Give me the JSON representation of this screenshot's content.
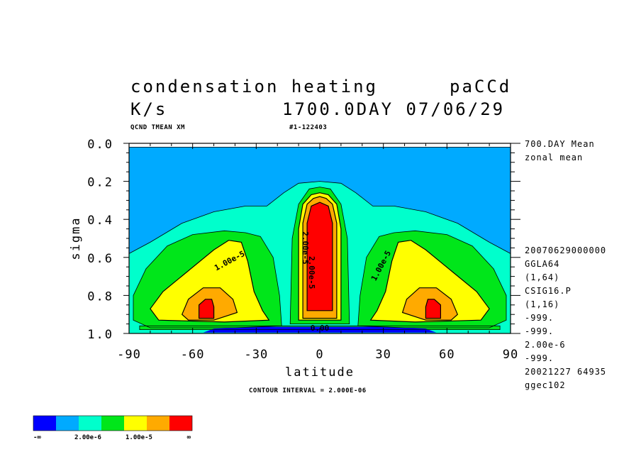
{
  "header": {
    "title": "condensation heating",
    "run_id": "paCCd",
    "units": "K/s",
    "time_stamp": "1700.0DAY 07/06/29",
    "variable_tag": "QCND TMEAN XM",
    "record_tag": "#1-122403",
    "contour_interval": "CONTOUR INTERVAL = 2.000E-06"
  },
  "side_info": {
    "top": [
      "700.DAY Mean",
      "zonal mean"
    ],
    "bottom": [
      "20070629000000",
      "GGLA64",
      "(1,64)",
      "CSIG16.P",
      "(1,16)",
      "-999.",
      "-999.",
      "2.00e-6",
      "-999.",
      "20021227  64935",
      "ggec102"
    ]
  },
  "chart_data": {
    "type": "contour",
    "title": "condensation heating",
    "xlabel": "latitude",
    "ylabel": "sigma",
    "xlim": [
      -90,
      90
    ],
    "ylim": [
      1.0,
      0.0
    ],
    "x_ticks": [
      -90,
      -60,
      -30,
      0,
      30,
      60,
      90
    ],
    "x_tick_labels": [
      "-90",
      "-60",
      "-30",
      "0",
      "30",
      "60",
      "90"
    ],
    "y_ticks": [
      0.0,
      0.2,
      0.4,
      0.6,
      0.8,
      1.0
    ],
    "y_tick_labels": [
      "0.0",
      "0.2",
      "0.4",
      "0.6",
      "0.8",
      "1.0"
    ],
    "contour_labels": [
      {
        "text": "1.00e-5",
        "lat": -42,
        "sigma": 0.63,
        "angle": -28
      },
      {
        "text": "1.00e-5",
        "lat": 30,
        "sigma": 0.65,
        "angle": -62
      },
      {
        "text": "2.00e-5",
        "lat": -8,
        "sigma": 0.55,
        "angle": 90
      },
      {
        "text": "2.00e-5",
        "lat": -5,
        "sigma": 0.68,
        "angle": 90
      },
      {
        "text": "0.00",
        "lat": 0,
        "sigma": 0.985,
        "angle": 0
      }
    ],
    "regions": [
      {
        "name": "subtropics",
        "level": 1,
        "color": "#00aaff",
        "polygon": [
          [
            -90,
            0.02
          ],
          [
            90,
            0.02
          ],
          [
            90,
            1.0
          ],
          [
            -90,
            1.0
          ]
        ]
      },
      {
        "name": "band-2",
        "level": 2,
        "color": "#00ffcc",
        "polygon": [
          [
            -90,
            0.58
          ],
          [
            -80,
            0.52
          ],
          [
            -65,
            0.42
          ],
          [
            -50,
            0.36
          ],
          [
            -35,
            0.33
          ],
          [
            -25,
            0.33
          ],
          [
            -17,
            0.26
          ],
          [
            -10,
            0.21
          ],
          [
            0,
            0.2
          ],
          [
            10,
            0.21
          ],
          [
            17,
            0.26
          ],
          [
            25,
            0.33
          ],
          [
            35,
            0.33
          ],
          [
            50,
            0.36
          ],
          [
            65,
            0.42
          ],
          [
            80,
            0.52
          ],
          [
            90,
            0.58
          ],
          [
            90,
            1.0
          ],
          [
            -90,
            1.0
          ]
        ]
      },
      {
        "name": "band-3-south",
        "level": 3,
        "color": "#00e61a",
        "polygon": [
          [
            -88,
            0.8
          ],
          [
            -82,
            0.66
          ],
          [
            -72,
            0.54
          ],
          [
            -60,
            0.48
          ],
          [
            -45,
            0.46
          ],
          [
            -35,
            0.47
          ],
          [
            -28,
            0.49
          ],
          [
            -22,
            0.6
          ],
          [
            -19,
            0.8
          ],
          [
            -18,
            0.96
          ],
          [
            -40,
            0.97
          ],
          [
            -80,
            0.97
          ],
          [
            -88,
            0.93
          ]
        ]
      },
      {
        "name": "band-3-north",
        "level": 3,
        "color": "#00e61a",
        "polygon": [
          [
            88,
            0.8
          ],
          [
            82,
            0.66
          ],
          [
            72,
            0.54
          ],
          [
            60,
            0.48
          ],
          [
            45,
            0.46
          ],
          [
            35,
            0.47
          ],
          [
            28,
            0.49
          ],
          [
            22,
            0.6
          ],
          [
            19,
            0.8
          ],
          [
            18,
            0.96
          ],
          [
            40,
            0.97
          ],
          [
            80,
            0.97
          ],
          [
            88,
            0.93
          ]
        ]
      },
      {
        "name": "band-3-center",
        "level": 3,
        "color": "#00e61a",
        "polygon": [
          [
            -14,
            0.95
          ],
          [
            -13,
            0.5
          ],
          [
            -10,
            0.32
          ],
          [
            -5,
            0.24
          ],
          [
            0,
            0.23
          ],
          [
            5,
            0.24
          ],
          [
            10,
            0.32
          ],
          [
            13,
            0.5
          ],
          [
            14,
            0.95
          ]
        ]
      },
      {
        "name": "band-3-floor",
        "level": 3,
        "color": "#00e61a",
        "polygon": [
          [
            -85,
            0.98
          ],
          [
            -85,
            0.96
          ],
          [
            85,
            0.96
          ],
          [
            85,
            0.98
          ]
        ]
      },
      {
        "name": "band-4-south",
        "level": 4,
        "color": "#ffff00",
        "polygon": [
          [
            -80,
            0.87
          ],
          [
            -74,
            0.78
          ],
          [
            -62,
            0.67
          ],
          [
            -50,
            0.56
          ],
          [
            -43,
            0.51
          ],
          [
            -37,
            0.52
          ],
          [
            -34,
            0.62
          ],
          [
            -31,
            0.78
          ],
          [
            -27,
            0.88
          ],
          [
            -24,
            0.93
          ],
          [
            -45,
            0.94
          ],
          [
            -76,
            0.93
          ]
        ]
      },
      {
        "name": "band-4-north",
        "level": 4,
        "color": "#ffff00",
        "polygon": [
          [
            80,
            0.87
          ],
          [
            74,
            0.78
          ],
          [
            62,
            0.67
          ],
          [
            50,
            0.56
          ],
          [
            43,
            0.51
          ],
          [
            37,
            0.52
          ],
          [
            34,
            0.62
          ],
          [
            31,
            0.78
          ],
          [
            27,
            0.88
          ],
          [
            24,
            0.93
          ],
          [
            45,
            0.94
          ],
          [
            76,
            0.93
          ]
        ]
      },
      {
        "name": "band-4-center",
        "level": 4,
        "color": "#ffff00",
        "polygon": [
          [
            -10,
            0.93
          ],
          [
            -10,
            0.45
          ],
          [
            -8,
            0.32
          ],
          [
            -4,
            0.27
          ],
          [
            0,
            0.26
          ],
          [
            4,
            0.27
          ],
          [
            8,
            0.32
          ],
          [
            10,
            0.45
          ],
          [
            10,
            0.93
          ]
        ]
      },
      {
        "name": "band-5-south",
        "level": 5,
        "color": "#ffaa00",
        "polygon": [
          [
            -65,
            0.9
          ],
          [
            -62,
            0.82
          ],
          [
            -55,
            0.76
          ],
          [
            -47,
            0.76
          ],
          [
            -41,
            0.82
          ],
          [
            -39,
            0.89
          ],
          [
            -50,
            0.93
          ],
          [
            -62,
            0.93
          ]
        ]
      },
      {
        "name": "band-5-north",
        "level": 5,
        "color": "#ffaa00",
        "polygon": [
          [
            65,
            0.9
          ],
          [
            62,
            0.82
          ],
          [
            55,
            0.76
          ],
          [
            47,
            0.76
          ],
          [
            41,
            0.82
          ],
          [
            39,
            0.89
          ],
          [
            50,
            0.93
          ],
          [
            62,
            0.93
          ]
        ]
      },
      {
        "name": "band-5-center",
        "level": 5,
        "color": "#ffaa00",
        "polygon": [
          [
            -8,
            0.92
          ],
          [
            -8,
            0.42
          ],
          [
            -6,
            0.32
          ],
          [
            -3,
            0.29
          ],
          [
            0,
            0.28
          ],
          [
            3,
            0.29
          ],
          [
            6,
            0.32
          ],
          [
            8,
            0.42
          ],
          [
            8,
            0.92
          ]
        ]
      },
      {
        "name": "band-6-south",
        "level": 6,
        "color": "#ff0000",
        "polygon": [
          [
            -57,
            0.92
          ],
          [
            -57,
            0.85
          ],
          [
            -54,
            0.82
          ],
          [
            -51,
            0.82
          ],
          [
            -50,
            0.86
          ],
          [
            -50,
            0.92
          ]
        ]
      },
      {
        "name": "band-6-north",
        "level": 6,
        "color": "#ff0000",
        "polygon": [
          [
            57,
            0.92
          ],
          [
            57,
            0.85
          ],
          [
            54,
            0.82
          ],
          [
            51,
            0.82
          ],
          [
            50,
            0.86
          ],
          [
            50,
            0.92
          ]
        ]
      },
      {
        "name": "band-6-center",
        "level": 6,
        "color": "#ff0000",
        "polygon": [
          [
            -6,
            0.88
          ],
          [
            -6,
            0.42
          ],
          [
            -4,
            0.33
          ],
          [
            0,
            0.31
          ],
          [
            4,
            0.33
          ],
          [
            6,
            0.42
          ],
          [
            6,
            0.88
          ]
        ]
      },
      {
        "name": "cooling-floor",
        "level": 0,
        "color": "#0000ff",
        "polygon": [
          [
            -55,
            0.995
          ],
          [
            -50,
            0.975
          ],
          [
            -30,
            0.965
          ],
          [
            0,
            0.965
          ],
          [
            30,
            0.965
          ],
          [
            50,
            0.975
          ],
          [
            55,
            0.995
          ]
        ]
      }
    ]
  },
  "colorbar": {
    "colors": [
      "#0000ff",
      "#00aaff",
      "#00ffcc",
      "#00e61a",
      "#ffff00",
      "#ffaa00",
      "#ff0000"
    ],
    "labels": [
      "-∞",
      "2.00e-6",
      "1.00e-5",
      "∞"
    ]
  }
}
